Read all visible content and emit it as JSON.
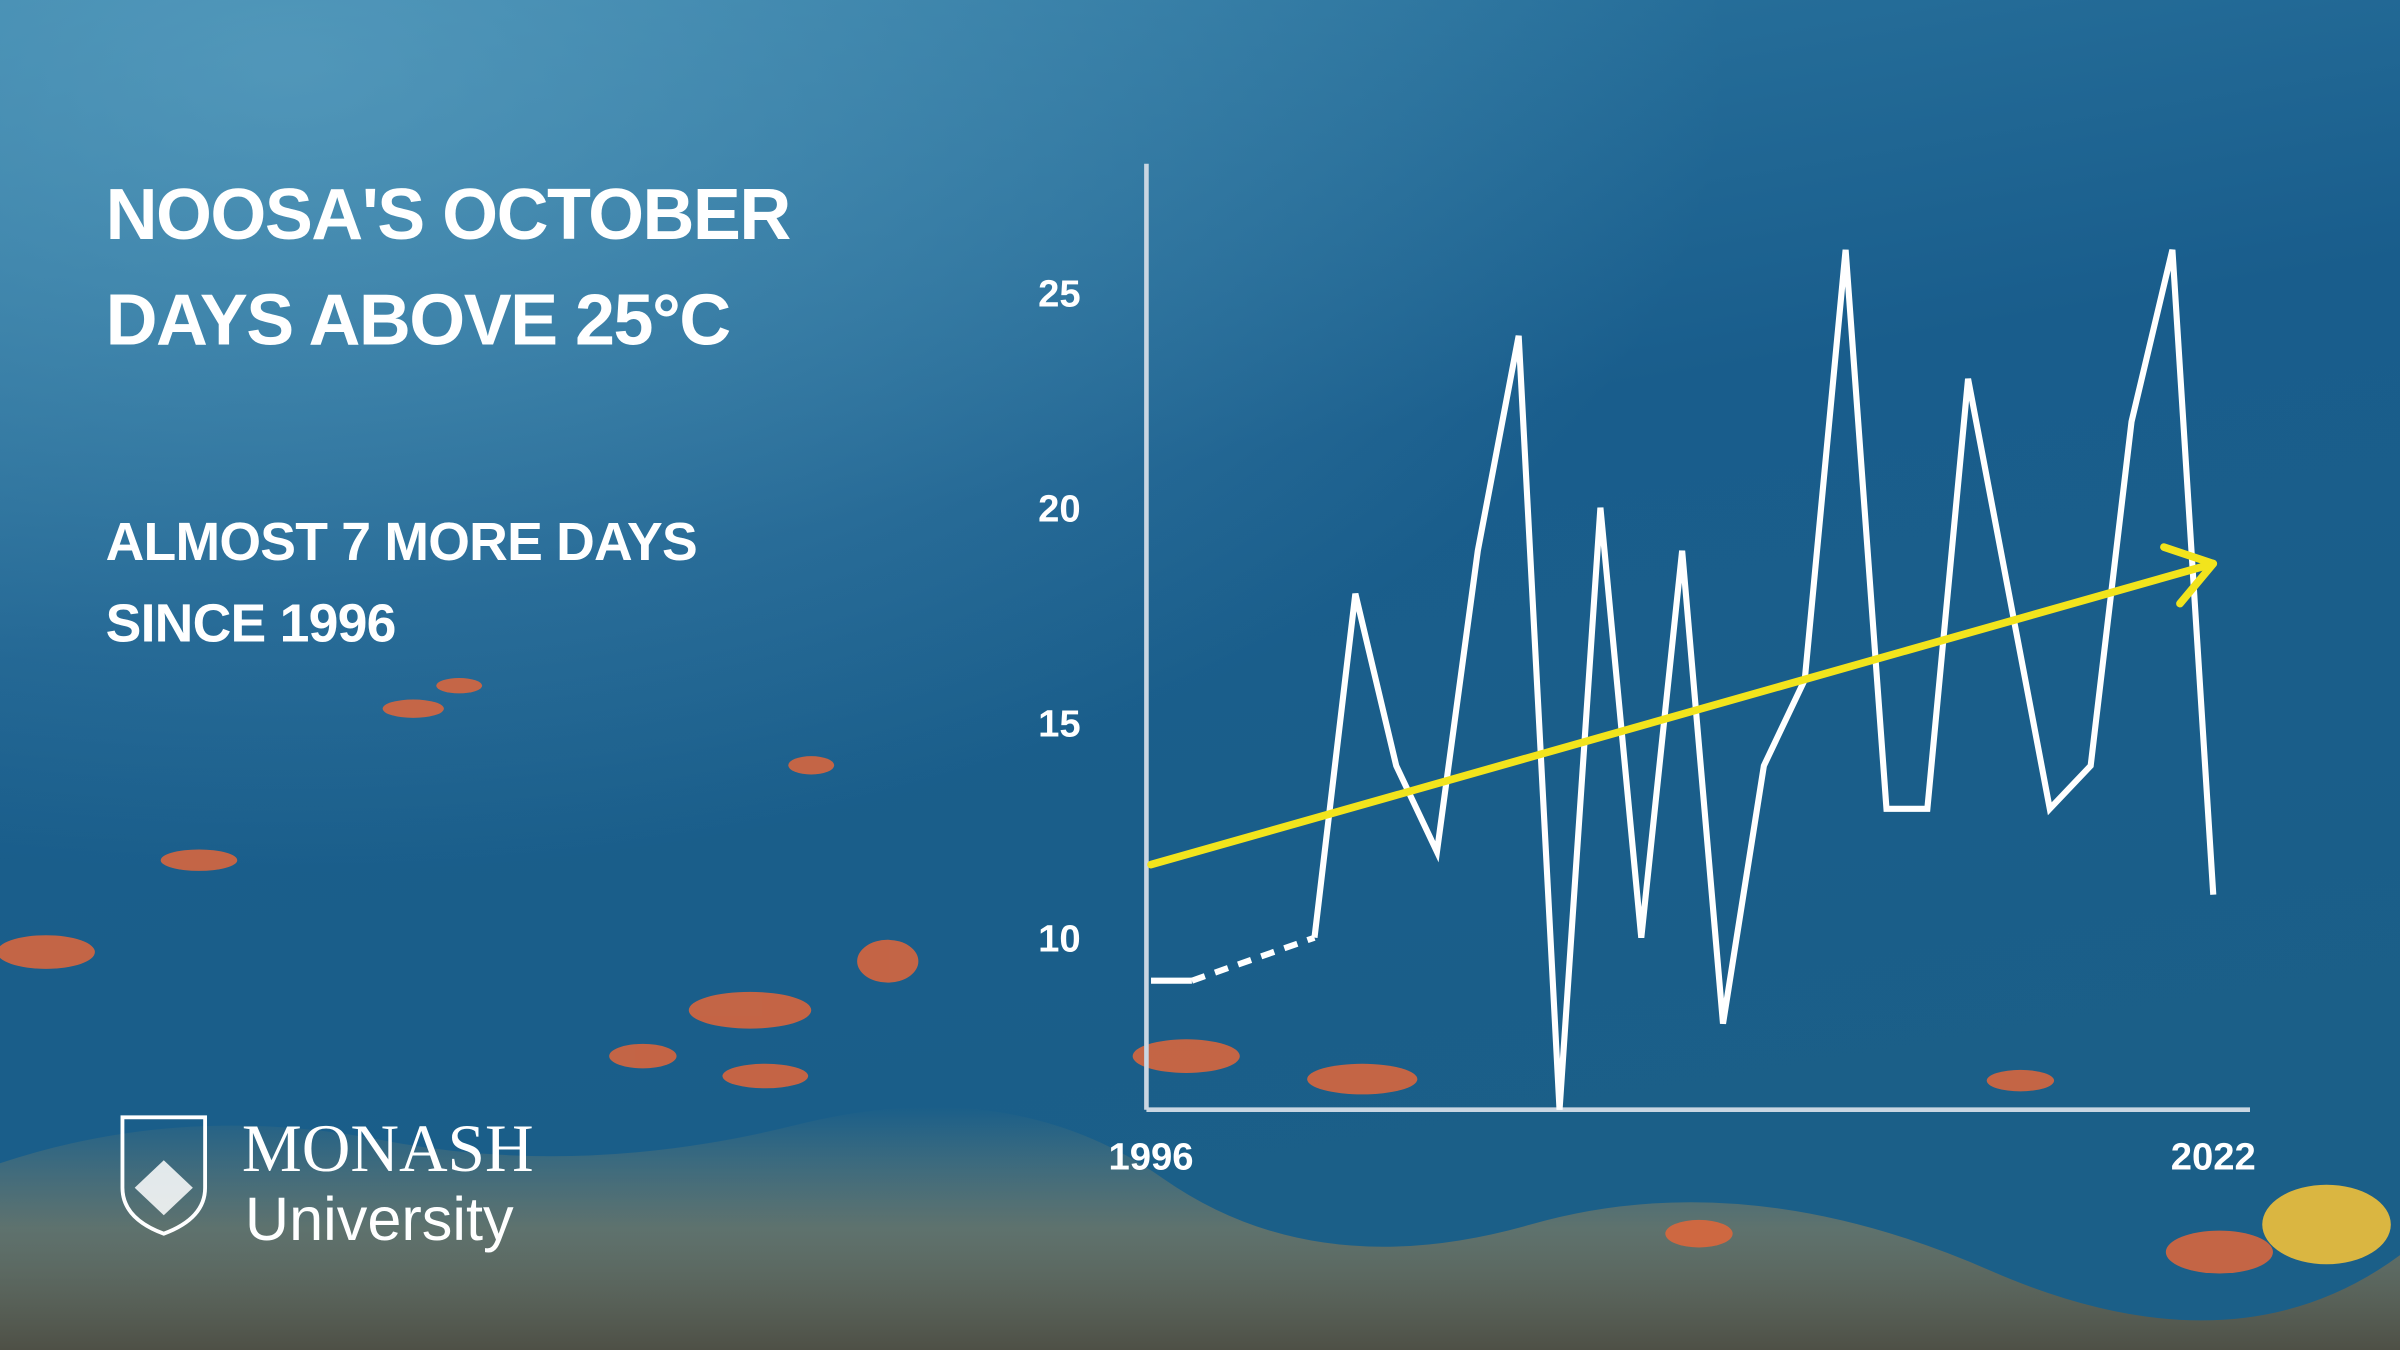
{
  "chart_data": {
    "type": "line",
    "title": "NOOSA'S OCTOBER DAYS ABOVE 25°C",
    "subtitle": "ALMOST 7 MORE DAYS SINCE 1996",
    "x": [
      1996,
      1997,
      1998,
      1999,
      2000,
      2001,
      2002,
      2003,
      2004,
      2005,
      2006,
      2007,
      2008,
      2009,
      2010,
      2011,
      2012,
      2013,
      2014,
      2015,
      2016,
      2017,
      2018,
      2019,
      2020,
      2021,
      2022
    ],
    "series": [
      {
        "color": "#ffffff",
        "values": [
          9,
          9,
          null,
          null,
          10,
          18,
          14,
          12,
          19,
          24,
          6,
          20,
          10,
          19,
          8,
          14,
          16,
          26,
          13,
          13,
          23,
          18,
          13,
          14,
          22,
          26,
          11
        ]
      }
    ],
    "trend": {
      "color": "#f2e41c",
      "x": [
        1996,
        2022
      ],
      "values": [
        11.7,
        18.7
      ]
    },
    "xlim": [
      1996,
      2022
    ],
    "xticks": [
      1996,
      2022
    ],
    "ylim": [
      6,
      28
    ],
    "yticks": [
      10,
      15,
      20,
      25
    ],
    "axis_color": "#c9d6e2"
  },
  "logo": {
    "name": "MONASH",
    "subname": "University"
  }
}
